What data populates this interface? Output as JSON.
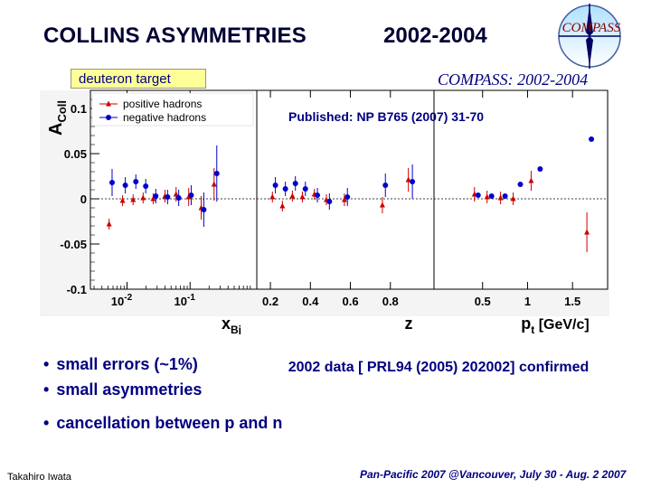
{
  "slide": {
    "title": "COLLINS ASYMMETRIES",
    "years": "2002-2004",
    "logo_text": "COMPASS",
    "target_label": "deuteron target",
    "panel_header": "COMPASS: 2002-2004",
    "publication": "Published: NP B765 (2007) 31-70",
    "bullets": [
      "small errors (~1%)",
      "small asymmetries",
      "cancellation between p and n"
    ],
    "confirmation": "2002 data [ PRL94 (2005) 202002] confirmed",
    "author": "Takahiro Iwata",
    "conference": "Pan-Pacific 2007 @Vancouver, July 30 - Aug. 2 2007"
  },
  "chart_data": {
    "type": "scatter",
    "ylabel": "A",
    "ylabel_sub": "Coll",
    "ylim": [
      -0.1,
      0.12
    ],
    "yticks": [
      0.1,
      0.05,
      0,
      -0.05,
      -0.1
    ],
    "ytick_labels": [
      "0.1",
      "0.05",
      "0",
      "-0.05",
      "-0.1"
    ],
    "legend": {
      "position": "top-left",
      "entries": [
        {
          "name": "positive hadrons",
          "color": "#cc0000",
          "marker": "triangle"
        },
        {
          "name": "negative hadrons",
          "color": "#0000cc",
          "marker": "circle"
        }
      ]
    },
    "colors": {
      "positive": "#cc0000",
      "negative": "#0000cc"
    },
    "panels": [
      {
        "id": "xbj",
        "xlabel": "x",
        "xlabel_sub": "Bj",
        "scale": "log",
        "xlim": [
          0.003,
          1.0
        ],
        "xtick_labels": [
          {
            "x": 0.01,
            "base": "10",
            "exp": "-2"
          },
          {
            "x": 0.1,
            "base": "10",
            "exp": "-1"
          }
        ],
        "series": [
          {
            "name": "positive hadrons",
            "x": [
              0.0052,
              0.0085,
              0.0125,
              0.018,
              0.026,
              0.04,
              0.06,
              0.095,
              0.15,
              0.24
            ],
            "y": [
              -0.028,
              -0.002,
              -0.001,
              0.001,
              0.0,
              0.003,
              0.005,
              0.002,
              -0.01,
              0.016
            ],
            "err": [
              0.006,
              0.006,
              0.006,
              0.006,
              0.006,
              0.007,
              0.008,
              0.01,
              0.013,
              0.018
            ]
          },
          {
            "name": "negative hadrons",
            "x": [
              0.0058,
              0.0094,
              0.0138,
              0.0198,
              0.0286,
              0.044,
              0.066,
              0.104,
              0.165,
              0.265
            ],
            "y": [
              0.018,
              0.015,
              0.019,
              0.014,
              0.003,
              0.002,
              0.001,
              0.004,
              -0.012,
              0.028
            ],
            "err": [
              0.015,
              0.009,
              0.008,
              0.008,
              0.008,
              0.008,
              0.009,
              0.011,
              0.019,
              0.031
            ]
          }
        ]
      },
      {
        "id": "z",
        "xlabel": "z",
        "scale": "linear",
        "xlim": [
          0.15,
          1.0
        ],
        "xticks": [
          0.2,
          0.4,
          0.6,
          0.8
        ],
        "xtick_labels": [
          "0.2",
          "0.4",
          "0.6",
          "0.8"
        ],
        "series": [
          {
            "name": "positive hadrons",
            "x": [
              0.21,
              0.26,
              0.31,
              0.36,
              0.42,
              0.48,
              0.57,
              0.76,
              0.89
            ],
            "y": [
              0.002,
              -0.008,
              0.003,
              0.002,
              0.005,
              -0.001,
              -0.001,
              -0.007,
              0.021
            ],
            "err": [
              0.006,
              0.006,
              0.006,
              0.006,
              0.006,
              0.006,
              0.007,
              0.009,
              0.013
            ]
          },
          {
            "name": "negative hadrons",
            "x": [
              0.225,
              0.275,
              0.325,
              0.375,
              0.435,
              0.495,
              0.585,
              0.775,
              0.91
            ],
            "y": [
              0.015,
              0.011,
              0.017,
              0.011,
              0.004,
              -0.003,
              0.002,
              0.015,
              0.019
            ],
            "err": [
              0.009,
              0.008,
              0.008,
              0.008,
              0.008,
              0.009,
              0.01,
              0.013,
              0.019
            ]
          }
        ]
      },
      {
        "id": "pt",
        "xlabel": "p",
        "xlabel_sub": "t",
        "xlabel_unit": "[GeV/c]",
        "scale": "linear",
        "xlim": [
          0.0,
          1.85
        ],
        "xticks": [
          0.5,
          1.0,
          1.5
        ],
        "xtick_labels": [
          "0.5",
          "1",
          "1.5"
        ],
        "series": [
          {
            "name": "positive hadrons",
            "x": [
              0.41,
              0.55,
              0.7,
              0.84,
              1.04,
              1.66
            ],
            "y": [
              0.005,
              0.002,
              0.001,
              0.0,
              0.02,
              -0.037
            ],
            "err": [
              0.008,
              0.007,
              0.007,
              0.007,
              0.011,
              0.022
            ]
          },
          {
            "name": "negative hadrons",
            "x": [
              0.45,
              0.6,
              0.75,
              0.92,
              1.14,
              1.71
            ],
            "y": [
              0.004,
              0.003,
              0.003,
              0.016,
              0.033,
              0.066
            ]
          }
        ]
      }
    ]
  }
}
